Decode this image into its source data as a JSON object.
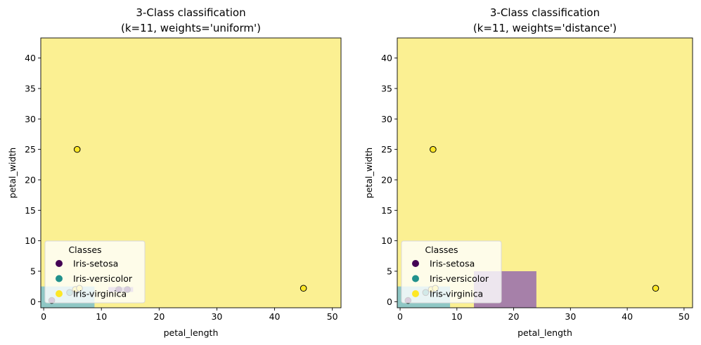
{
  "chart_data": [
    {
      "type": "scatter",
      "title_line1": "3-Class classification",
      "title_line2": "(k=11, weights='uniform')",
      "xlabel": "petal_length",
      "ylabel": "petal_width",
      "xlim": [
        -0.5,
        51.5
      ],
      "ylim": [
        -1,
        43.3
      ],
      "xticks": [
        0,
        10,
        20,
        30,
        40,
        50
      ],
      "yticks": [
        0,
        5,
        10,
        15,
        20,
        25,
        30,
        35,
        40
      ],
      "background_class": "Iris-virginica",
      "regions": [
        {
          "class": "Iris-setosa",
          "x0": -0.5,
          "x1": 2.5,
          "y0": -1,
          "y1": 1.2
        },
        {
          "class": "Iris-versicolor",
          "x0": -0.5,
          "x1": 8.8,
          "y0": -1,
          "y1": 2.5
        },
        {
          "class": "Iris-setosa",
          "x0": 11.2,
          "x1": 15.5,
          "y0": 1.6,
          "y1": 2.4
        }
      ],
      "points": [
        {
          "x": 5.8,
          "y": 25.0,
          "class": "Iris-virginica"
        },
        {
          "x": 45.0,
          "y": 2.2,
          "class": "Iris-virginica"
        },
        {
          "x": 1.4,
          "y": 0.2,
          "class": "Iris-setosa"
        },
        {
          "x": 4.5,
          "y": 1.5,
          "class": "Iris-versicolor"
        },
        {
          "x": 5.5,
          "y": 2.0,
          "class": "Iris-virginica"
        },
        {
          "x": 6.2,
          "y": 2.2,
          "class": "Iris-virginica"
        },
        {
          "x": 13.0,
          "y": 2.0,
          "class": "Iris-setosa"
        },
        {
          "x": 14.5,
          "y": 2.0,
          "class": "Iris-setosa"
        }
      ],
      "legend": {
        "title": "Classes",
        "placement": "lower-left",
        "entries": [
          {
            "label": "Iris-setosa",
            "color": "#440154"
          },
          {
            "label": "Iris-versicolor",
            "color": "#21918c"
          },
          {
            "label": "Iris-virginica",
            "color": "#fde725"
          }
        ]
      }
    },
    {
      "type": "scatter",
      "title_line1": "3-Class classification",
      "title_line2": "(k=11, weights='distance')",
      "xlabel": "petal_length",
      "ylabel": "petal_width",
      "xlim": [
        -0.5,
        51.5
      ],
      "ylim": [
        -1,
        43.3
      ],
      "xticks": [
        0,
        10,
        20,
        30,
        40,
        50
      ],
      "yticks": [
        0,
        5,
        10,
        15,
        20,
        25,
        30,
        35,
        40
      ],
      "background_class": "Iris-virginica",
      "regions": [
        {
          "class": "Iris-setosa",
          "x0": -0.5,
          "x1": 2.5,
          "y0": -1,
          "y1": 1.2
        },
        {
          "class": "Iris-versicolor",
          "x0": -0.5,
          "x1": 8.8,
          "y0": -1,
          "y1": 2.5
        },
        {
          "class": "Iris-setosa",
          "x0": 13.0,
          "x1": 24.0,
          "y0": -1,
          "y1": 5.0
        }
      ],
      "points": [
        {
          "x": 5.8,
          "y": 25.0,
          "class": "Iris-virginica"
        },
        {
          "x": 45.0,
          "y": 2.2,
          "class": "Iris-virginica"
        },
        {
          "x": 1.4,
          "y": 0.2,
          "class": "Iris-setosa"
        },
        {
          "x": 4.5,
          "y": 1.5,
          "class": "Iris-versicolor"
        },
        {
          "x": 5.5,
          "y": 2.0,
          "class": "Iris-virginica"
        },
        {
          "x": 6.2,
          "y": 2.2,
          "class": "Iris-virginica"
        }
      ],
      "legend": {
        "title": "Classes",
        "placement": "lower-left",
        "entries": [
          {
            "label": "Iris-setosa",
            "color": "#440154"
          },
          {
            "label": "Iris-versicolor",
            "color": "#21918c"
          },
          {
            "label": "Iris-virginica",
            "color": "#fde725"
          }
        ]
      }
    }
  ],
  "colors": {
    "background_region": "#fbf092",
    "setosa_region": "#a680a9",
    "versicolor_region": "#8fc7c5"
  }
}
